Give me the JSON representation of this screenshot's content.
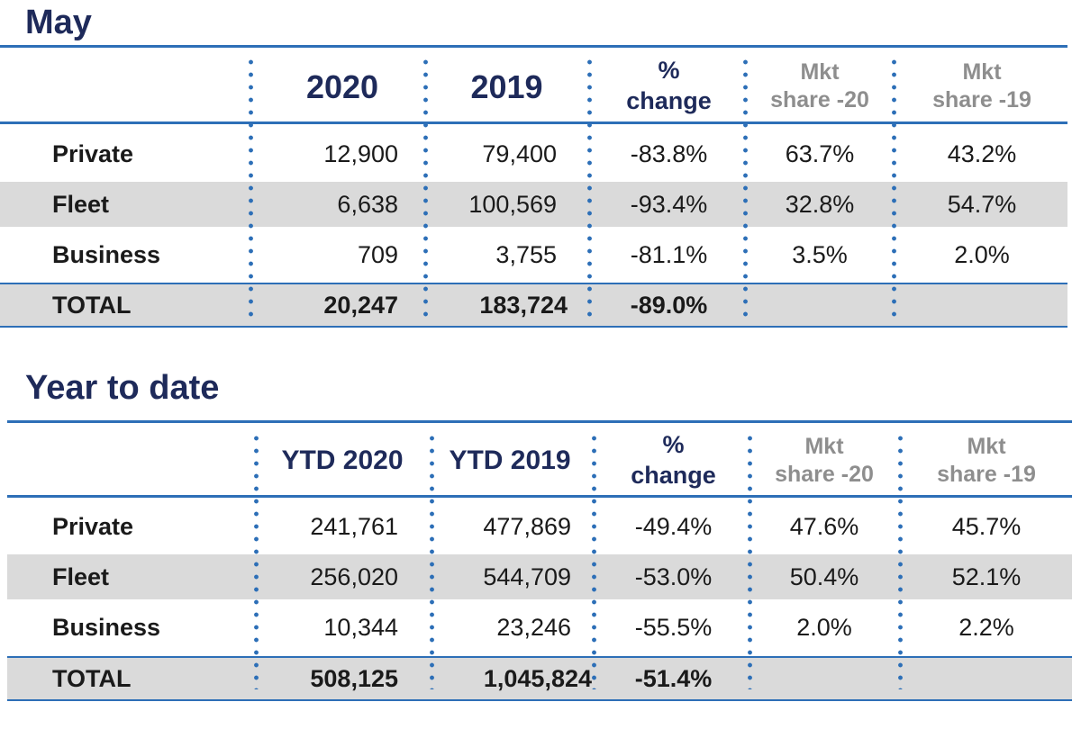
{
  "colors": {
    "title": "#1e2a5a",
    "rule": "#2d6fb7",
    "shade": "#dadada",
    "muted": "#8e8e8e"
  },
  "sections": [
    {
      "title": "May",
      "headers": [
        "2020",
        "2019",
        "%",
        "change",
        "Mkt",
        "share -20",
        "Mkt",
        "share -19"
      ],
      "rows": [
        {
          "label": "Private",
          "values": [
            "12,900",
            "79,400",
            "-83.8%",
            "63.7%",
            "43.2%"
          ]
        },
        {
          "label": "Fleet",
          "values": [
            "6,638",
            "100,569",
            "-93.4%",
            "32.8%",
            "54.7%"
          ]
        },
        {
          "label": "Business",
          "values": [
            "709",
            "3,755",
            "-81.1%",
            "3.5%",
            "2.0%"
          ]
        },
        {
          "label": "TOTAL",
          "values": [
            "20,247",
            "183,724",
            "-89.0%",
            "",
            ""
          ]
        }
      ]
    },
    {
      "title": "Year to date",
      "headers": [
        "YTD 2020",
        "YTD 2019",
        "%",
        "change",
        "Mkt",
        "share -20",
        "Mkt",
        "share -19"
      ],
      "rows": [
        {
          "label": "Private",
          "values": [
            "241,761",
            "477,869",
            "-49.4%",
            "47.6%",
            "45.7%"
          ]
        },
        {
          "label": "Fleet",
          "values": [
            "256,020",
            "544,709",
            "-53.0%",
            "50.4%",
            "52.1%"
          ]
        },
        {
          "label": "Business",
          "values": [
            "10,344",
            "23,246",
            "-55.5%",
            "2.0%",
            "2.2%"
          ]
        },
        {
          "label": "TOTAL",
          "values": [
            "508,125",
            "1,045,824",
            "-51.4%",
            "",
            ""
          ]
        }
      ]
    }
  ]
}
